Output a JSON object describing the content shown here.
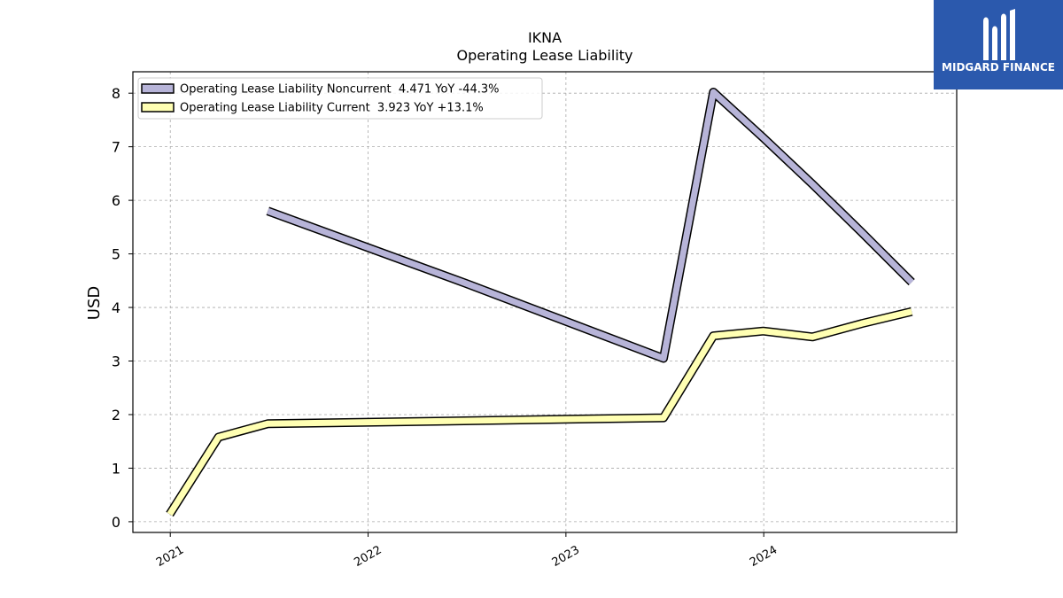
{
  "brand": {
    "name": "MIDGARD FINANCE",
    "bg_color": "#2b59ad"
  },
  "chart_data": {
    "type": "line",
    "title": "IKNA",
    "subtitle": "Operating Lease Liability",
    "ylabel": "USD",
    "xlabel": "",
    "ylim": [
      -0.2,
      8.4
    ],
    "xlim": [
      "2020-10-24",
      "2024-12-22"
    ],
    "yticks": [
      0,
      1,
      2,
      3,
      4,
      5,
      6,
      7,
      8
    ],
    "xticks": [
      "2021",
      "2022",
      "2023",
      "2024"
    ],
    "grid": true,
    "legend_position": "top-left",
    "series": [
      {
        "name": "Operating Lease Liability Noncurrent  4.471 YoY -44.3%",
        "color": "#b7b4d8",
        "points": [
          {
            "x": "2021-06-30",
            "y": 5.8
          },
          {
            "x": "2022-06-30",
            "y": 4.45
          },
          {
            "x": "2023-06-30",
            "y": 3.05
          },
          {
            "x": "2023-09-30",
            "y": 8.02
          },
          {
            "x": "2023-12-31",
            "y": 7.17
          },
          {
            "x": "2024-03-31",
            "y": 6.3
          },
          {
            "x": "2024-06-30",
            "y": 5.4
          },
          {
            "x": "2024-09-30",
            "y": 4.471
          }
        ]
      },
      {
        "name": "Operating Lease Liability Current  3.923 YoY +13.1%",
        "color": "#ffffb3",
        "points": [
          {
            "x": "2020-12-31",
            "y": 0.14
          },
          {
            "x": "2021-03-31",
            "y": 1.58
          },
          {
            "x": "2021-06-30",
            "y": 1.83
          },
          {
            "x": "2023-06-30",
            "y": 1.94
          },
          {
            "x": "2023-09-30",
            "y": 3.47
          },
          {
            "x": "2023-12-31",
            "y": 3.56
          },
          {
            "x": "2024-03-31",
            "y": 3.45
          },
          {
            "x": "2024-06-30",
            "y": 3.7
          },
          {
            "x": "2024-09-30",
            "y": 3.923
          }
        ]
      }
    ]
  }
}
